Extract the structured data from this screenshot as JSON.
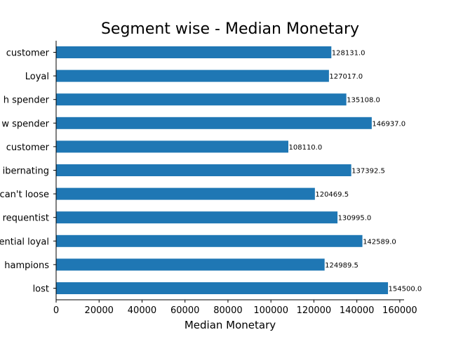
{
  "chart_data": {
    "type": "bar",
    "orientation": "horizontal",
    "title": "Segment wise - Median Monetary",
    "xlabel": "Median Monetary",
    "ylabel": "",
    "xlim": [
      0,
      162000
    ],
    "xticks": [
      0,
      20000,
      40000,
      60000,
      80000,
      100000,
      120000,
      140000,
      160000
    ],
    "grid": false,
    "bar_color": "#1f77b4",
    "categories": [
      "customer",
      "Loyal",
      "h spender",
      "w spender",
      "customer",
      "ibernating",
      "can't loose",
      "requentist",
      "ential loyal",
      "hampions",
      "lost"
    ],
    "values": [
      128131.0,
      127017.0,
      135108.0,
      146937.0,
      108110.0,
      137392.5,
      120469.5,
      130995.0,
      142589.0,
      124989.5,
      154500.0
    ],
    "value_labels": [
      "128131.0",
      "127017.0",
      "135108.0",
      "146937.0",
      "108110.0",
      "137392.5",
      "120469.5",
      "130995.0",
      "142589.0",
      "124989.5",
      "154500.0"
    ]
  }
}
